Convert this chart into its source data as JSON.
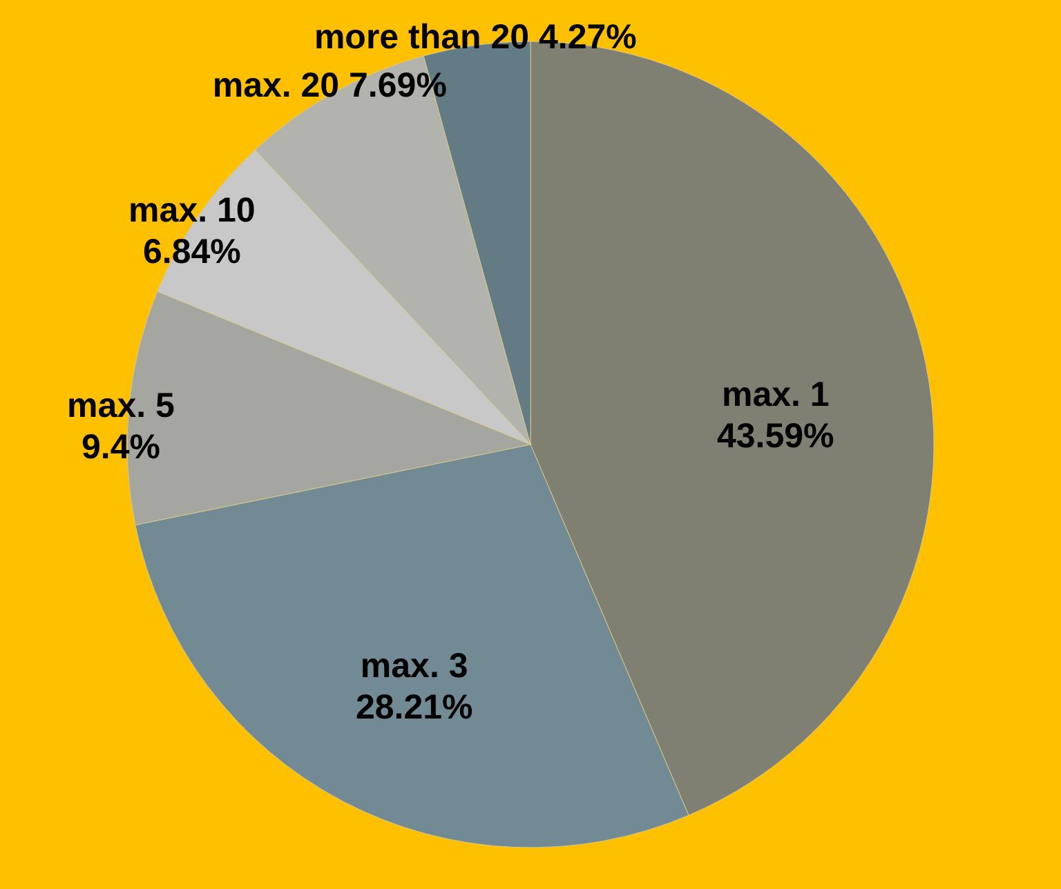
{
  "chart_data": {
    "type": "pie",
    "categories": [
      "max. 1",
      "max. 3",
      "max. 5",
      "max. 10",
      "max. 20",
      "more than 20"
    ],
    "values": [
      43.59,
      28.21,
      9.4,
      6.84,
      7.69,
      4.27
    ],
    "value_labels": [
      "43.59%",
      "28.21%",
      "9.4%",
      "6.84%",
      "7.69%",
      "4.27%"
    ],
    "colors": [
      "#808072",
      "#728a93",
      "#a6a6a0",
      "#c8c8c8",
      "#b3b3ad",
      "#627b85"
    ]
  }
}
